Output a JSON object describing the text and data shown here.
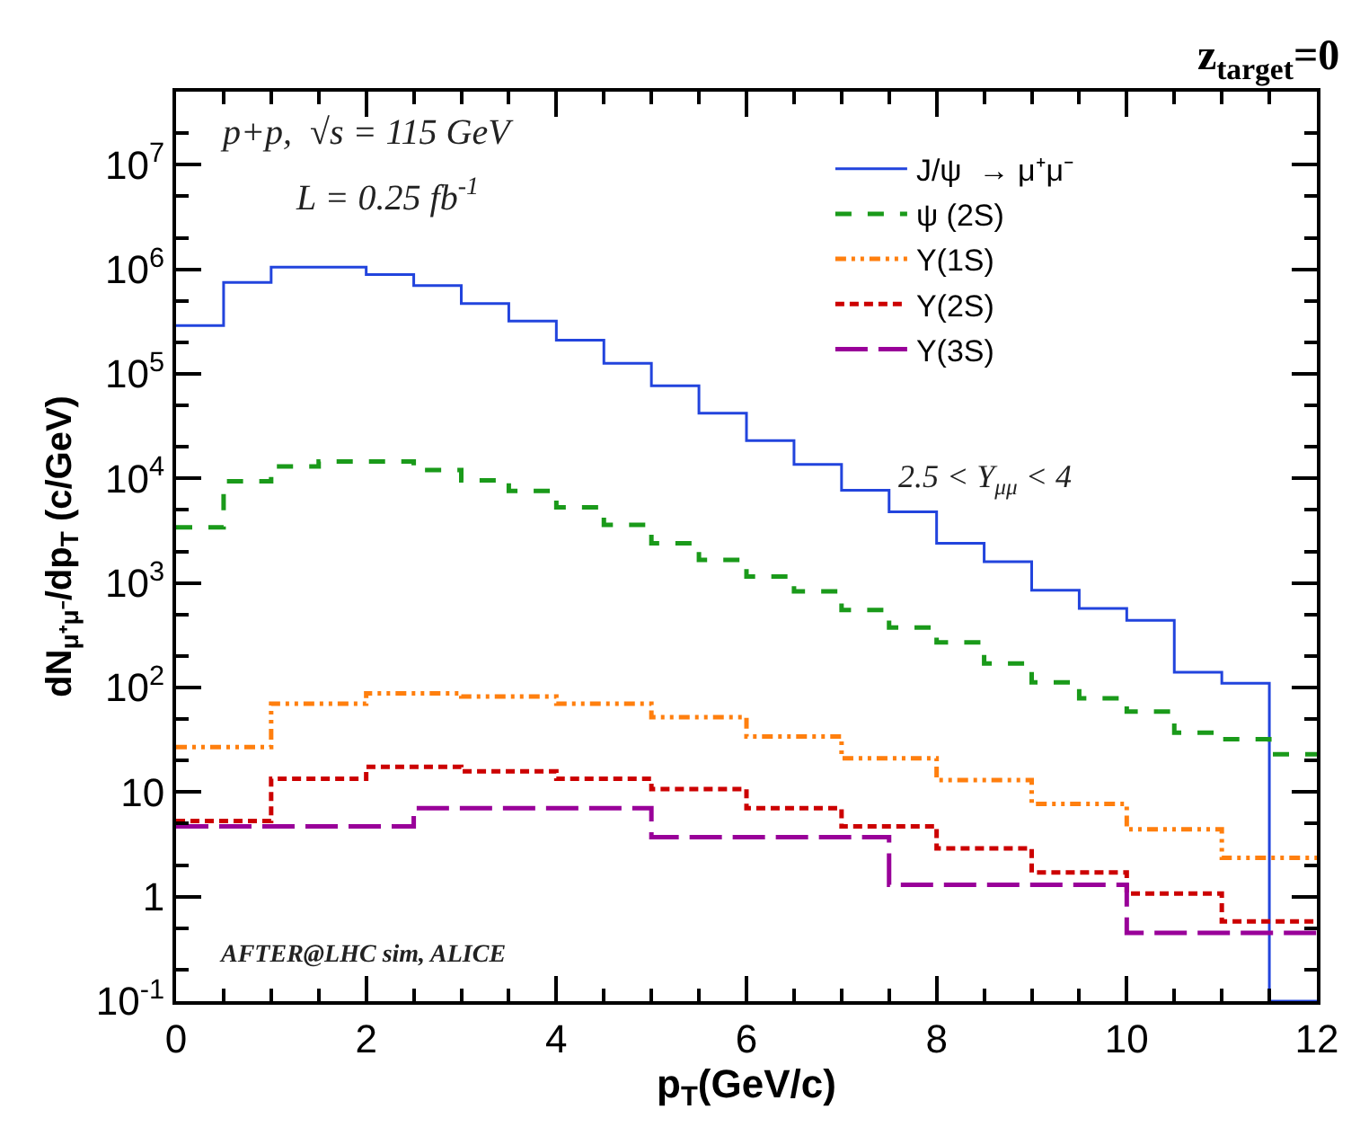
{
  "chart_data": {
    "type": "step",
    "title": "z$_{target}$=0",
    "xlabel": "p$_{T}$(GeV/c)",
    "ylabel": "dN$_{μ⁺μ⁻}$/dp$_{T}$ (c/GeV)",
    "annotations": [
      "p+p,  √s = 115 GeV",
      "L = 0.25 fb$^{-1}$",
      "2.5 < Y$_{μμ}$ < 4",
      "AFTER@LHC sim, ALICE"
    ],
    "series": [
      {
        "name": "J/ψ  → μ⁺μ⁻",
        "color": "#2244dd",
        "line_style": "solid",
        "x": [
          0,
          0.5,
          1,
          1.5,
          2,
          2.5,
          3,
          3.5,
          4,
          4.5,
          5,
          5.5,
          6,
          6.5,
          7,
          7.5,
          8,
          8.5,
          9,
          9.5,
          10,
          10.5,
          11,
          11.5,
          12
        ],
        "values": [
          290000,
          750000,
          1050000,
          1050000,
          890000,
          700000,
          470000,
          320000,
          210000,
          126000,
          77000,
          42000,
          23000,
          13600,
          7700,
          4800,
          2400,
          1600,
          850,
          570,
          440,
          140,
          110,
          0.1,
          0.1
        ]
      },
      {
        "name": "ψ (2S)",
        "color": "#1a9a1a",
        "line_style": "dashed",
        "x": [
          0,
          0.5,
          1,
          1.5,
          2,
          2.5,
          3,
          3.5,
          4,
          4.5,
          5,
          5.5,
          6,
          6.5,
          7,
          7.5,
          8,
          8.5,
          9,
          9.5,
          10,
          10.5,
          11,
          11.5,
          12
        ],
        "values": [
          3400,
          9400,
          13000,
          14500,
          14500,
          12000,
          9600,
          7600,
          5300,
          3600,
          2400,
          1660,
          1150,
          830,
          550,
          375,
          270,
          170,
          112,
          79,
          59,
          37,
          32,
          23,
          23
        ]
      },
      {
        "name": "Υ(1S)",
        "color": "#ff7f0e",
        "line_style": "dotted",
        "x": [
          0,
          1,
          2,
          3,
          4,
          5,
          6,
          7,
          8,
          9,
          10,
          11,
          12
        ],
        "values": [
          27,
          70,
          88,
          82,
          70,
          52,
          34,
          21,
          13,
          7.7,
          4.4,
          2.35,
          2.35
        ]
      },
      {
        "name": "Υ(2S)",
        "color": "#cc0000",
        "line_style": "dashed",
        "x": [
          0,
          1,
          2,
          3,
          4,
          5,
          6,
          7,
          8,
          9,
          10,
          11,
          12
        ],
        "values": [
          5.3,
          13.4,
          17.4,
          15.8,
          13.4,
          10.7,
          7.0,
          4.7,
          2.9,
          1.7,
          1.07,
          0.58,
          0.58
        ]
      },
      {
        "name": "Υ(3S)",
        "color": "#990099",
        "line_style": "dashed",
        "x": [
          0,
          2.5,
          5,
          7.5,
          10,
          12
        ],
        "values": [
          4.7,
          7.0,
          3.7,
          1.3,
          0.45,
          0.45
        ]
      }
    ],
    "log": "y",
    "xlim": [
      0,
      12
    ],
    "xticks": [
      0,
      2,
      4,
      6,
      8,
      10,
      12
    ],
    "ylim": [
      0.1,
      50000000
    ],
    "yticks": [
      {
        "value": 0.1,
        "label": "10$^{-1}$"
      },
      1,
      10,
      {
        "value": 100,
        "label": "10$^{2}$"
      },
      {
        "value": 1000,
        "label": "10$^{3}$"
      },
      {
        "value": 10000,
        "label": "10$^{4}$"
      },
      {
        "value": 100000,
        "label": "10$^{5}$"
      },
      {
        "value": 1000000,
        "label": "10$^{6}$"
      },
      {
        "value": 10000000,
        "label": "10$^{7}$"
      }
    ],
    "legend": "top right"
  }
}
